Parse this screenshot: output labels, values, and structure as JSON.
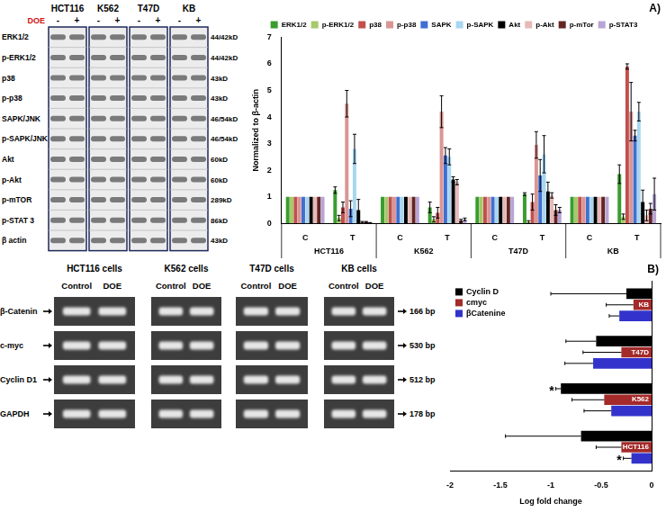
{
  "western_blot": {
    "treatment_label": "DOE",
    "lanes": [
      "-",
      "+"
    ],
    "cell_lines": [
      "HCT116",
      "K562",
      "T47D",
      "KB"
    ],
    "rows": [
      {
        "protein": "ERK1/2",
        "size": "44/42kD"
      },
      {
        "protein": "p-ERK1/2",
        "size": "44/42kD"
      },
      {
        "protein": "p38",
        "size": "43kD"
      },
      {
        "protein": "p-p38",
        "size": "43kD"
      },
      {
        "protein": "SAPK/JNK",
        "size": "46/54kD"
      },
      {
        "protein": "p-SAPK/JNK",
        "size": "46/54kD"
      },
      {
        "protein": "Akt",
        "size": "60kD"
      },
      {
        "protein": "p-Akt",
        "size": "60kD"
      },
      {
        "protein": "p-mTOR",
        "size": "289kD"
      },
      {
        "protein": "p-STAT 3",
        "size": "86kD"
      },
      {
        "protein": "β actin",
        "size": "43kD"
      }
    ]
  },
  "rt_pcr": {
    "panels": [
      "HCT116 cells",
      "K562 cells",
      "T47D cells",
      "KB cells"
    ],
    "lanes": [
      "Control",
      "DOE"
    ],
    "rows": [
      {
        "gene": "β-Catenin",
        "size": "166 bp"
      },
      {
        "gene": "c-myc",
        "size": "530 bp"
      },
      {
        "gene": "Cyclin D1",
        "size": "512 bp"
      },
      {
        "gene": "GAPDH",
        "size": "178 bp"
      }
    ]
  },
  "chart_data": [
    {
      "type": "bar",
      "title": "A)",
      "y_label": "Normalized to β-actin",
      "categories": [
        "C",
        "T",
        "C",
        "T",
        "C",
        "T",
        "C",
        "T"
      ],
      "category_groups": [
        "HCT116",
        "K562",
        "T47D",
        "KB"
      ],
      "ylim": [
        0,
        7
      ],
      "yticks": [
        0,
        1,
        2,
        3,
        4,
        5,
        6,
        7
      ],
      "grid": false,
      "legend": "top",
      "series": [
        {
          "name": "ERK1/2",
          "color": "#3a9d2e",
          "values": [
            1,
            1.25,
            1,
            0.6,
            1,
            1.1,
            1,
            1.85
          ],
          "errors": [
            null,
            0.12,
            null,
            0.2,
            null,
            0.05,
            null,
            0.35
          ]
        },
        {
          "name": "p-ERK1/2",
          "color": "#a6c96a",
          "values": [
            1,
            0.2,
            1,
            0.15,
            1,
            0.05,
            1,
            0.25
          ],
          "errors": [
            null,
            0.1,
            null,
            0.1,
            null,
            0.05,
            null,
            0.1
          ]
        },
        {
          "name": "p38",
          "color": "#c0504d",
          "values": [
            1,
            0.6,
            1,
            0.4,
            1,
            0.8,
            1,
            5.9
          ],
          "errors": [
            null,
            0.2,
            null,
            0.2,
            null,
            0.3,
            null,
            0.1
          ]
        },
        {
          "name": "p-p38",
          "color": "#d99694",
          "values": [
            1,
            4.5,
            1,
            4.2,
            1,
            2.95,
            1,
            4.2
          ],
          "errors": [
            null,
            0.5,
            null,
            0.6,
            null,
            0.5,
            null,
            1.1
          ]
        },
        {
          "name": "SAPK",
          "color": "#3f6fd1",
          "values": [
            1,
            0.55,
            1,
            2.55,
            1,
            1.8,
            1,
            3.3
          ],
          "errors": [
            null,
            0.3,
            null,
            0.3,
            null,
            0.6,
            null,
            0.2
          ]
        },
        {
          "name": "p-SAPK",
          "color": "#a9d6f0",
          "values": [
            1,
            2.8,
            1,
            2.5,
            1,
            2.6,
            1,
            4.2
          ],
          "errors": [
            null,
            0.55,
            null,
            0.3,
            null,
            0.7,
            null,
            0.35
          ]
        },
        {
          "name": "Akt",
          "color": "#000000",
          "values": [
            1,
            0.5,
            1,
            1.65,
            1,
            1.2,
            1,
            0.8
          ],
          "errors": [
            null,
            0.4,
            null,
            0.1,
            null,
            0.35,
            null,
            0.45
          ]
        },
        {
          "name": "p-Akt",
          "color": "#e6b9b8",
          "values": [
            1,
            0.05,
            1,
            1.55,
            1,
            1.05,
            1,
            0.3
          ],
          "errors": [
            null,
            0.02,
            null,
            0.1,
            null,
            0.1,
            null,
            0.2
          ]
        },
        {
          "name": "p-mTor",
          "color": "#632523",
          "values": [
            1,
            0.05,
            1,
            0.1,
            1,
            0.5,
            1,
            0.55
          ],
          "errors": [
            null,
            0.02,
            null,
            0.05,
            null,
            0.2,
            null,
            0.2
          ]
        },
        {
          "name": "p-STAT3",
          "color": "#b7a5d6",
          "values": [
            1,
            0.02,
            1,
            0.15,
            1,
            0.5,
            1,
            1.1
          ],
          "errors": [
            null,
            0.01,
            null,
            0.05,
            null,
            0.1,
            null,
            0.6
          ]
        }
      ]
    },
    {
      "type": "bar",
      "title": "B)",
      "orientation": "horizontal",
      "x_label": "Log fold change",
      "categories": [
        "KB",
        "T47D",
        "K562",
        "HCT116"
      ],
      "xlim": [
        -2,
        0
      ],
      "xticks": [
        -2,
        -1.5,
        -1,
        -0.5,
        0
      ],
      "grid": false,
      "legend": "upper left",
      "tick_labels": "x",
      "series": [
        {
          "name": "Cyclin D",
          "color": "#000000",
          "values": [
            -0.25,
            -0.55,
            -0.9,
            -0.7
          ],
          "errors": [
            0.75,
            0.3,
            0.05,
            0.75
          ]
        },
        {
          "name": "cmyc",
          "color": "#a52a2a",
          "values": [
            -0.18,
            -0.3,
            -0.47,
            -0.3
          ],
          "errors": [
            0.27,
            0.38,
            0.32,
            0.25
          ]
        },
        {
          "name": "βCatenine",
          "color": "#3333cc",
          "values": [
            -0.32,
            -0.58,
            -0.4,
            -0.2
          ],
          "errors": [
            0.1,
            0.28,
            0.27,
            0.08
          ]
        }
      ],
      "annotations": [
        {
          "text": "*",
          "category": "K562",
          "series": "Cyclin D"
        },
        {
          "text": "*",
          "category": "HCT116",
          "series": "βCatenine"
        }
      ]
    }
  ]
}
